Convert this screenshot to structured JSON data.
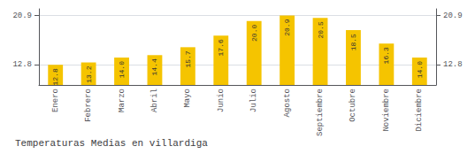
{
  "chart_data": {
    "type": "bar",
    "title": "Temperaturas Medias en villardiga",
    "categories": [
      "Enero",
      "Febrero",
      "Marzo",
      "Abril",
      "Mayo",
      "Junio",
      "Julio",
      "Agosto",
      "Septiembre",
      "Octubre",
      "Noviembre",
      "Diciembre"
    ],
    "values": [
      12.8,
      13.2,
      14.0,
      14.4,
      15.7,
      17.6,
      20.0,
      20.9,
      20.5,
      18.5,
      16.3,
      14.0
    ],
    "value_labels": [
      "12.8",
      "13.2",
      "14.0",
      "14.4",
      "15.7",
      "17.6",
      "20.0",
      "20.9",
      "20.5",
      "18.5",
      "16.3",
      "14.0"
    ],
    "color": "#F5C400",
    "ylim": [
      9.5,
      22.0
    ],
    "yticks": [
      12.8,
      20.9
    ],
    "y2lim": [
      9.5,
      22.0
    ],
    "y2ticks": [
      12.8,
      20.9
    ],
    "grid": true,
    "data_labels": true
  }
}
